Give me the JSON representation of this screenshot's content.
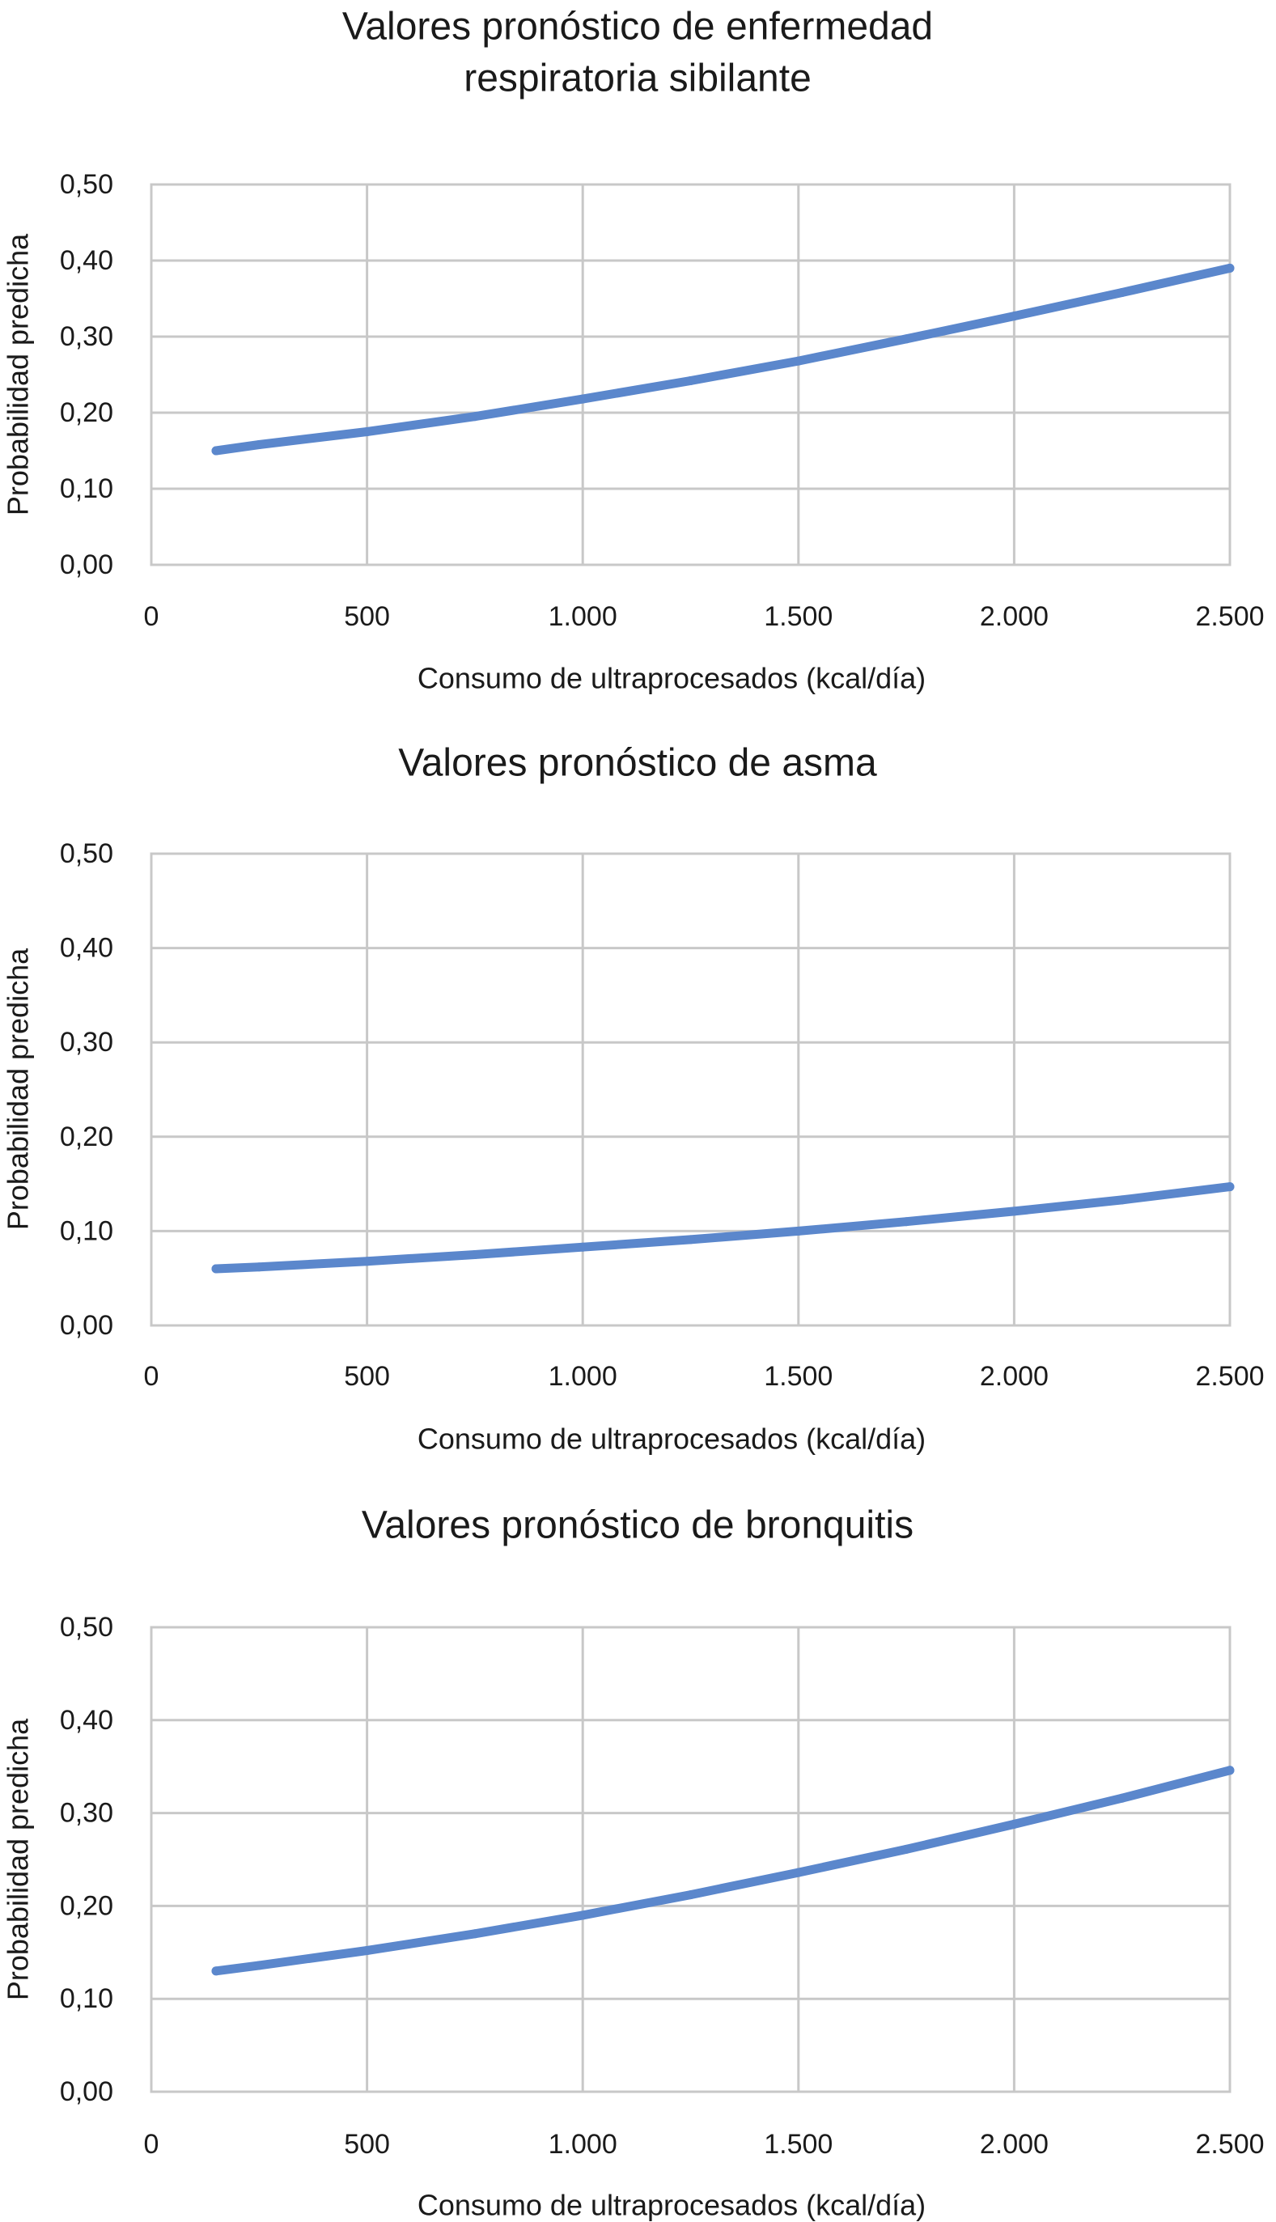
{
  "chart_data": [
    {
      "type": "line",
      "title_lines": [
        "Valores pronóstico de enfermedad",
        "respiratoria sibilante"
      ],
      "xlabel": "Consumo de ultraprocesados (kcal/día)",
      "ylabel": "Probabilidad predicha",
      "xlim": [
        0,
        2500
      ],
      "ylim": [
        0,
        0.5
      ],
      "x_ticks": [
        "0",
        "500",
        "1.000",
        "1.500",
        "2.000",
        "2.500"
      ],
      "y_ticks": [
        "0,00",
        "0,10",
        "0,20",
        "0,30",
        "0,40",
        "0,50"
      ],
      "grid": true,
      "series": [
        {
          "color": "#5b87cc",
          "x": [
            150,
            250,
            500,
            750,
            1000,
            1250,
            1500,
            1750,
            2000,
            2250,
            2500
          ],
          "y": [
            0.15,
            0.158,
            0.175,
            0.195,
            0.218,
            0.242,
            0.268,
            0.297,
            0.327,
            0.358,
            0.39
          ]
        }
      ]
    },
    {
      "type": "line",
      "title_lines": [
        "Valores pronóstico de asma"
      ],
      "xlabel": "Consumo de ultraprocesados (kcal/día)",
      "ylabel": "Probabilidad predicha",
      "xlim": [
        0,
        2500
      ],
      "ylim": [
        0,
        0.5
      ],
      "x_ticks": [
        "0",
        "500",
        "1.000",
        "1.500",
        "2.000",
        "2.500"
      ],
      "y_ticks": [
        "0,00",
        "0,10",
        "0,20",
        "0,30",
        "0,40",
        "0,50"
      ],
      "grid": true,
      "series": [
        {
          "color": "#5b87cc",
          "x": [
            150,
            250,
            500,
            750,
            1000,
            1250,
            1500,
            1750,
            2000,
            2250,
            2500
          ],
          "y": [
            0.06,
            0.062,
            0.068,
            0.075,
            0.083,
            0.091,
            0.1,
            0.11,
            0.121,
            0.133,
            0.147
          ]
        }
      ]
    },
    {
      "type": "line",
      "title_lines": [
        "Valores pronóstico de bronquitis"
      ],
      "xlabel": "Consumo de ultraprocesados (kcal/día)",
      "ylabel": "Probabilidad predicha",
      "xlim": [
        0,
        2500
      ],
      "ylim": [
        0,
        0.5
      ],
      "x_ticks": [
        "0",
        "500",
        "1.000",
        "1.500",
        "2.000",
        "2.500"
      ],
      "y_ticks": [
        "0,00",
        "0,10",
        "0,20",
        "0,30",
        "0,40",
        "0,50"
      ],
      "grid": true,
      "series": [
        {
          "color": "#5b87cc",
          "x": [
            150,
            250,
            500,
            750,
            1000,
            1250,
            1500,
            1750,
            2000,
            2250,
            2500
          ],
          "y": [
            0.13,
            0.136,
            0.152,
            0.17,
            0.19,
            0.212,
            0.236,
            0.261,
            0.288,
            0.316,
            0.346
          ]
        }
      ]
    }
  ]
}
